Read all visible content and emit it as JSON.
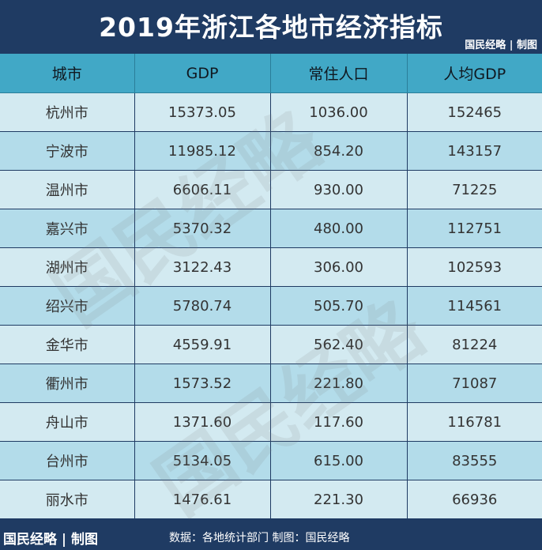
{
  "title": "2019年浙江各地市经济指标",
  "brand_top": "国民经略 | 制图",
  "table": {
    "headers": [
      "城市",
      "GDP",
      "常住人口",
      "人均GDP"
    ],
    "rows": [
      [
        "杭州市",
        "15373.05",
        "1036.00",
        "152465"
      ],
      [
        "宁波市",
        "11985.12",
        "854.20",
        "143157"
      ],
      [
        "温州市",
        "6606.11",
        "930.00",
        "71225"
      ],
      [
        "嘉兴市",
        "5370.32",
        "480.00",
        "112751"
      ],
      [
        "湖州市",
        "3122.43",
        "306.00",
        "102593"
      ],
      [
        "绍兴市",
        "5780.74",
        "505.70",
        "114561"
      ],
      [
        "金华市",
        "4559.91",
        "562.40",
        "81224"
      ],
      [
        "衢州市",
        "1573.52",
        "221.80",
        "71087"
      ],
      [
        "舟山市",
        "1371.60",
        "117.60",
        "116781"
      ],
      [
        "台州市",
        "5134.05",
        "615.00",
        "83555"
      ],
      [
        "丽水市",
        "1476.61",
        "221.30",
        "66936"
      ]
    ]
  },
  "watermark": "国民经略",
  "footer": {
    "brand": "国民经略 | 制图",
    "source": "数据：各地统计部门  制图：国民经略"
  },
  "colors": {
    "dark_blue": "#1f3b63",
    "header_cyan": "#41a8c6",
    "row_light": "#d3eaf1",
    "row_mid": "#b3dcea"
  }
}
